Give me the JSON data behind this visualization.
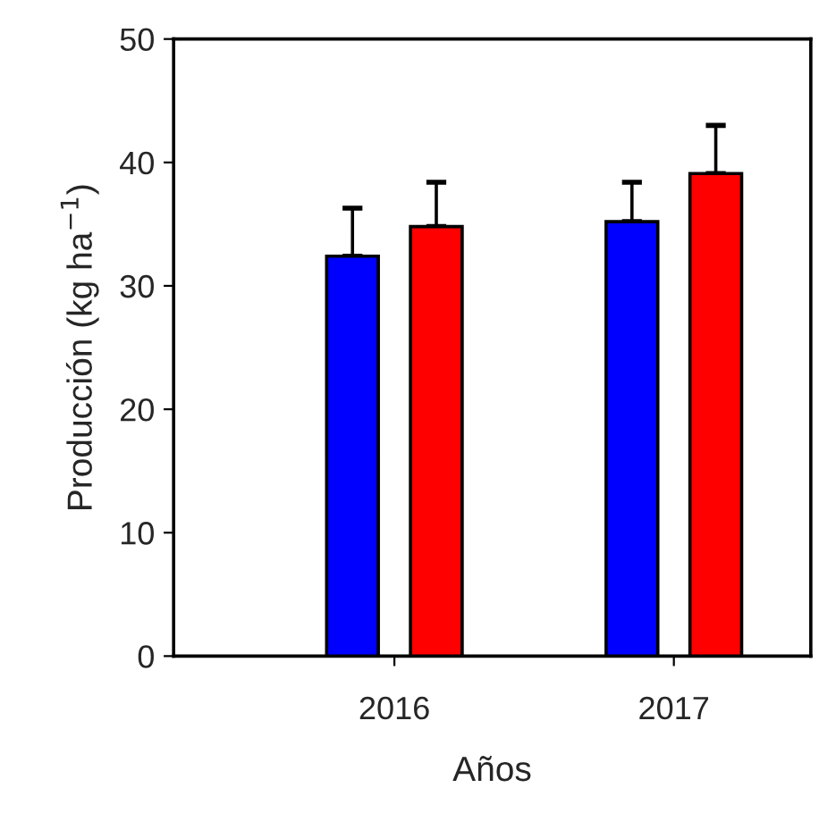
{
  "chart_data": {
    "type": "bar",
    "xlabel": "Años",
    "ylabel": "Producción (kg ha$^{−1}$)",
    "categories": [
      "2016",
      "2017"
    ],
    "series": [
      {
        "color": "#0000ff",
        "values": [
          32.4,
          35.2
        ],
        "errors": [
          [
            32.4,
            36.3
          ],
          [
            35.2,
            38.4
          ]
        ]
      },
      {
        "color": "#ff0000",
        "values": [
          34.8,
          39.1
        ],
        "errors": [
          [
            34.8,
            38.4
          ],
          [
            39.1,
            43.0
          ]
        ]
      }
    ],
    "ylim": [
      0,
      50
    ],
    "yticks": [
      0,
      10,
      20,
      30,
      40,
      50
    ],
    "grid": false,
    "legend": false
  }
}
